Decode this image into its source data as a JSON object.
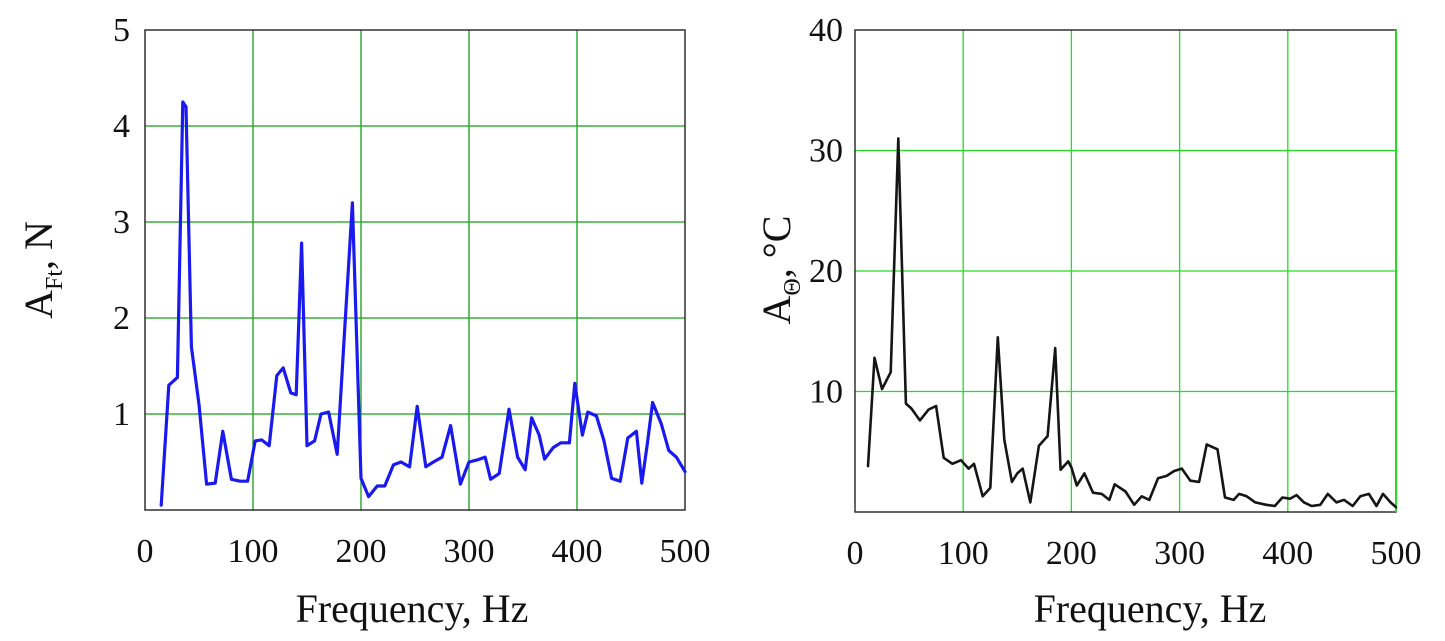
{
  "chart_data": [
    {
      "type": "line",
      "xlabel": "Frequency, Hz",
      "ylabel": {
        "main": "A",
        "sub": "Ft",
        "unit": ", N"
      },
      "xlim": [
        0,
        500
      ],
      "ylim": [
        0,
        5
      ],
      "xticks": [
        0,
        100,
        200,
        300,
        400,
        500
      ],
      "yticks": [
        1,
        2,
        3,
        4,
        5
      ],
      "grid": true,
      "grid_color": "#14a014",
      "series": [
        {
          "color": "#1a1aee",
          "x": [
            15,
            22,
            30,
            35,
            38,
            43,
            50,
            57,
            65,
            72,
            80,
            88,
            95,
            102,
            108,
            115,
            122,
            128,
            135,
            140,
            145,
            150,
            157,
            163,
            170,
            178,
            185,
            192,
            200,
            207,
            215,
            222,
            230,
            237,
            245,
            252,
            260,
            267,
            275,
            283,
            292,
            300,
            307,
            315,
            320,
            328,
            337,
            345,
            352,
            358,
            365,
            370,
            378,
            385,
            393,
            398,
            405,
            410,
            418,
            425,
            432,
            440,
            447,
            455,
            460,
            465,
            470,
            478,
            485,
            492,
            500
          ],
          "y": [
            0.05,
            1.3,
            1.38,
            4.25,
            4.2,
            1.7,
            1.1,
            0.27,
            0.28,
            0.82,
            0.32,
            0.3,
            0.3,
            0.72,
            0.73,
            0.67,
            1.4,
            1.48,
            1.22,
            1.2,
            2.78,
            0.67,
            0.72,
            1.0,
            1.02,
            0.58,
            1.9,
            3.2,
            0.33,
            0.14,
            0.25,
            0.25,
            0.47,
            0.5,
            0.45,
            1.08,
            0.45,
            0.5,
            0.55,
            0.88,
            0.27,
            0.5,
            0.52,
            0.55,
            0.32,
            0.38,
            1.05,
            0.55,
            0.42,
            0.96,
            0.78,
            0.53,
            0.65,
            0.7,
            0.7,
            1.32,
            0.78,
            1.02,
            0.98,
            0.72,
            0.33,
            0.3,
            0.75,
            0.82,
            0.28,
            0.68,
            1.12,
            0.9,
            0.62,
            0.55,
            0.4
          ]
        }
      ]
    },
    {
      "type": "line",
      "xlabel": "Frequency, Hz",
      "ylabel": {
        "main": "A",
        "sub": "Θ",
        "unit": ", °C"
      },
      "xlim": [
        0,
        500
      ],
      "ylim": [
        0,
        40
      ],
      "xticks": [
        0,
        100,
        200,
        300,
        400,
        500
      ],
      "yticks": [
        10,
        20,
        30,
        40
      ],
      "grid": true,
      "grid_color": "#22dd22",
      "series": [
        {
          "color": "#151515",
          "x": [
            12,
            18,
            25,
            33,
            40,
            47,
            52,
            60,
            68,
            75,
            82,
            90,
            98,
            105,
            110,
            118,
            125,
            132,
            138,
            145,
            150,
            155,
            162,
            170,
            178,
            185,
            190,
            197,
            200,
            205,
            212,
            220,
            228,
            235,
            240,
            250,
            258,
            265,
            272,
            280,
            288,
            295,
            302,
            310,
            318,
            325,
            335,
            342,
            350,
            355,
            362,
            370,
            380,
            388,
            395,
            402,
            408,
            415,
            422,
            430,
            437,
            445,
            452,
            460,
            467,
            475,
            482,
            488,
            495,
            500
          ],
          "y": [
            3.8,
            12.8,
            10.2,
            11.6,
            31.0,
            9.0,
            8.6,
            7.6,
            8.5,
            8.8,
            4.5,
            4.0,
            4.3,
            3.6,
            4.0,
            1.3,
            2.0,
            14.5,
            6.0,
            2.5,
            3.2,
            3.6,
            0.8,
            5.5,
            6.3,
            13.6,
            3.5,
            4.2,
            3.7,
            2.2,
            3.2,
            1.6,
            1.5,
            1.0,
            2.3,
            1.7,
            0.6,
            1.3,
            1.0,
            2.8,
            3.0,
            3.4,
            3.6,
            2.6,
            2.5,
            5.6,
            5.2,
            1.2,
            1.0,
            1.5,
            1.3,
            0.8,
            0.6,
            0.5,
            1.2,
            1.1,
            1.4,
            0.8,
            0.5,
            0.6,
            1.5,
            0.8,
            1.0,
            0.5,
            1.3,
            1.5,
            0.5,
            1.5,
            0.8,
            0.4
          ]
        }
      ]
    }
  ]
}
